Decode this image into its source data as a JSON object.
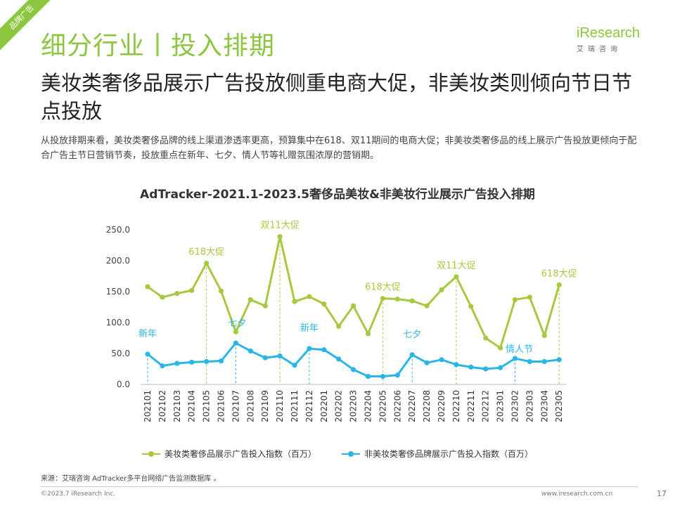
{
  "page": {
    "ribbon": "品牌广告",
    "section_title": "细分行业丨投入排期",
    "headline": "美妆类奢侈品展示广告投放侧重电商大促，非美妆类则倾向节日节点投放",
    "description": "从投放排期来看，美妆类奢侈品牌的线上渠道渗透率更高，预算集中在618、双11期间的电商大促；非美妆类奢侈品的线上展示广告投放更倾向于配合广告主节日营销节奏，投放重点在新年、七夕、情人节等礼赠氛围浓厚的营销期。",
    "logo_word": "iResearch",
    "logo_sub": "艾瑞咨询",
    "source": "来源：艾瑞咨询 AdTracker多平台网络广告监测数据库 。",
    "copyright": "©2023.7 iResearch Inc.",
    "site": "www.iresearch.com.cn",
    "page_number": "17"
  },
  "chart_data": {
    "type": "line",
    "title": "AdTracker-2021.1-2023.5奢侈品美妆&非美妆行业展示广告投入排期",
    "categories": [
      "202101",
      "202102",
      "202103",
      "202104",
      "202105",
      "202106",
      "202107",
      "202108",
      "202109",
      "202110",
      "202111",
      "202112",
      "202201",
      "202202",
      "202203",
      "202204",
      "202205",
      "202206",
      "202207",
      "202208",
      "202209",
      "202210",
      "202211",
      "202212",
      "202301",
      "202302",
      "202303",
      "202304",
      "202305"
    ],
    "ylim": [
      0,
      250
    ],
    "yticks": [
      "250.0",
      "200.0",
      "150.0",
      "100.0",
      "50.0",
      "0.0"
    ],
    "series": [
      {
        "name": "美妆类奢侈品展示广告投入指数（百万）",
        "color": "#a7c93f",
        "values": [
          158,
          141,
          147,
          152,
          196,
          151,
          85,
          137,
          127,
          239,
          134,
          142,
          130,
          94,
          127,
          82,
          139,
          138,
          135,
          127,
          153,
          174,
          126,
          75,
          59,
          137,
          141,
          79,
          161
        ]
      },
      {
        "name": "非美妆类奢侈品牌展示广告投入指数（百万）",
        "color": "#29b6e6",
        "values": [
          49,
          30,
          34,
          36,
          37,
          38,
          67,
          54,
          43,
          46,
          31,
          58,
          56,
          41,
          24,
          13,
          13,
          15,
          48,
          35,
          40,
          32,
          28,
          25,
          27,
          42,
          37,
          37,
          40
        ]
      }
    ],
    "annotations": [
      {
        "text": "618大促",
        "index": 4,
        "series": 0,
        "color": "#a7c93f"
      },
      {
        "text": "双11大促",
        "index": 9,
        "series": 0,
        "color": "#a7c93f"
      },
      {
        "text": "618大促",
        "index": 16,
        "series": 0,
        "color": "#a7c93f"
      },
      {
        "text": "双11大促",
        "index": 21,
        "series": 0,
        "color": "#a7c93f"
      },
      {
        "text": "618大促",
        "index": 28,
        "series": 0,
        "color": "#a7c93f"
      },
      {
        "text": "新年",
        "index": 0,
        "series": 1,
        "color": "#29b6e6"
      },
      {
        "text": "七夕",
        "index": 6,
        "series": 1,
        "color": "#29b6e6"
      },
      {
        "text": "新年",
        "index": 11,
        "series": 1,
        "color": "#29b6e6"
      },
      {
        "text": "七夕",
        "index": 18,
        "series": 1,
        "color": "#29b6e6"
      },
      {
        "text": "情人节",
        "index": 25,
        "series": 1,
        "color": "#29b6e6"
      }
    ]
  }
}
